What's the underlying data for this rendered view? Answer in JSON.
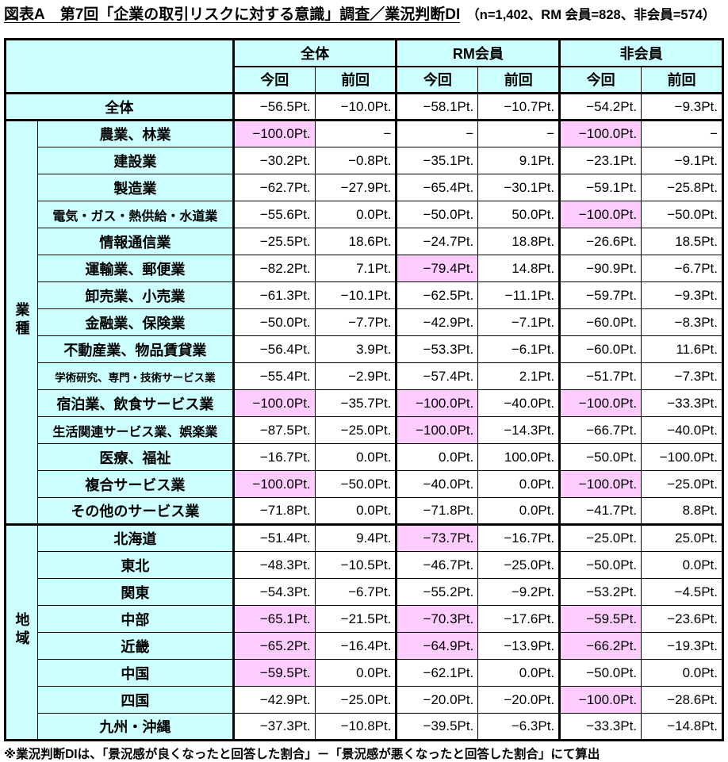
{
  "title": {
    "main": "図表А　第7回「企業の取引リスクに対する意識」調査／業況判断DI",
    "note": "（n=1,402、RM 会員=828、非会員=574）"
  },
  "colors": {
    "header_bg": "#CCFFFF",
    "highlight_bg": "#FFCCFF",
    "border": "#000000"
  },
  "table": {
    "col_groups": [
      "全体",
      "RM会員",
      "非会員"
    ],
    "sub_headers": [
      "今回",
      "前回"
    ],
    "overall_row": {
      "label": "全体",
      "values": [
        "−56.5Pt.",
        "−10.0Pt.",
        "−58.1Pt.",
        "−10.7Pt.",
        "−54.2Pt.",
        "−9.3Pt."
      ],
      "highlights": []
    },
    "sections": [
      {
        "id": "industry",
        "label": "業種",
        "rows": [
          {
            "label": "農業、林業",
            "values": [
              "−100.0Pt.",
              "−",
              "−",
              "−",
              "−100.0Pt.",
              "−"
            ],
            "highlights": [
              0,
              4
            ]
          },
          {
            "label": "建設業",
            "values": [
              "−30.2Pt.",
              "−0.8Pt.",
              "−35.1Pt.",
              "9.1Pt.",
              "−23.1Pt.",
              "−9.1Pt."
            ],
            "highlights": []
          },
          {
            "label": "製造業",
            "values": [
              "−62.7Pt.",
              "−27.9Pt.",
              "−65.4Pt.",
              "−30.1Pt.",
              "−59.1Pt.",
              "−25.8Pt."
            ],
            "highlights": []
          },
          {
            "label": "電気・ガス・熱供給・水道業",
            "values": [
              "−55.6Pt.",
              "0.0Pt.",
              "−50.0Pt.",
              "50.0Pt.",
              "−100.0Pt.",
              "−50.0Pt."
            ],
            "highlights": [
              4
            ]
          },
          {
            "label": "情報通信業",
            "values": [
              "−25.5Pt.",
              "18.6Pt.",
              "−24.7Pt.",
              "18.8Pt.",
              "−26.6Pt.",
              "18.5Pt."
            ],
            "highlights": []
          },
          {
            "label": "運輸業、郵便業",
            "values": [
              "−82.2Pt.",
              "7.1Pt.",
              "−79.4Pt.",
              "14.8Pt.",
              "−90.9Pt.",
              "−6.7Pt."
            ],
            "highlights": [
              2
            ]
          },
          {
            "label": "卸売業、小売業",
            "values": [
              "−61.3Pt.",
              "−10.1Pt.",
              "−62.5Pt.",
              "−11.1Pt.",
              "−59.7Pt.",
              "−9.3Pt."
            ],
            "highlights": []
          },
          {
            "label": "金融業、保険業",
            "values": [
              "−50.0Pt.",
              "−7.7Pt.",
              "−42.9Pt.",
              "−7.1Pt.",
              "−60.0Pt.",
              "−8.3Pt."
            ],
            "highlights": []
          },
          {
            "label": "不動産業、物品賃貸業",
            "values": [
              "−56.4Pt.",
              "3.9Pt.",
              "−53.3Pt.",
              "−6.1Pt.",
              "−60.0Pt.",
              "11.6Pt."
            ],
            "highlights": []
          },
          {
            "label": "学術研究、専門・技術サービス業",
            "values": [
              "−55.4Pt.",
              "−2.9Pt.",
              "−57.4Pt.",
              "2.1Pt.",
              "−51.7Pt.",
              "−7.3Pt."
            ],
            "highlights": []
          },
          {
            "label": "宿泊業、飲食サービス業",
            "values": [
              "−100.0Pt.",
              "−35.7Pt.",
              "−100.0Pt.",
              "−40.0Pt.",
              "−100.0Pt.",
              "−33.3Pt."
            ],
            "highlights": [
              0,
              2,
              4
            ]
          },
          {
            "label": "生活関連サービス業、娯楽業",
            "values": [
              "−87.5Pt.",
              "−25.0Pt.",
              "−100.0Pt.",
              "−14.3Pt.",
              "−66.7Pt.",
              "−40.0Pt."
            ],
            "highlights": [
              2
            ]
          },
          {
            "label": "医療、福祉",
            "values": [
              "−16.7Pt.",
              "0.0Pt.",
              "0.0Pt.",
              "100.0Pt.",
              "−50.0Pt.",
              "−100.0Pt."
            ],
            "highlights": []
          },
          {
            "label": "複合サービス業",
            "values": [
              "−100.0Pt.",
              "−50.0Pt.",
              "−40.0Pt.",
              "0.0Pt.",
              "−100.0Pt.",
              "−25.0Pt."
            ],
            "highlights": [
              0,
              4
            ]
          },
          {
            "label": "その他のサービス業",
            "values": [
              "−71.8Pt.",
              "0.0Pt.",
              "−71.8Pt.",
              "0.0Pt.",
              "−41.7Pt.",
              "8.8Pt."
            ],
            "highlights": []
          }
        ]
      },
      {
        "id": "region",
        "label": "地域",
        "rows": [
          {
            "label": "北海道",
            "values": [
              "−51.4Pt.",
              "9.4Pt.",
              "−73.7Pt.",
              "−16.7Pt.",
              "−25.0Pt.",
              "25.0Pt."
            ],
            "highlights": [
              2
            ]
          },
          {
            "label": "東北",
            "values": [
              "−48.3Pt.",
              "−10.5Pt.",
              "−46.7Pt.",
              "−25.0Pt.",
              "−50.0Pt.",
              "0.0Pt."
            ],
            "highlights": []
          },
          {
            "label": "関東",
            "values": [
              "−54.3Pt.",
              "−6.7Pt.",
              "−55.2Pt.",
              "−9.2Pt.",
              "−53.2Pt.",
              "−4.5Pt."
            ],
            "highlights": []
          },
          {
            "label": "中部",
            "values": [
              "−65.1Pt.",
              "−21.5Pt.",
              "−70.3Pt.",
              "−17.6Pt.",
              "−59.5Pt.",
              "−23.6Pt."
            ],
            "highlights": [
              0,
              2,
              4
            ]
          },
          {
            "label": "近畿",
            "values": [
              "−65.2Pt.",
              "−16.4Pt.",
              "−64.9Pt.",
              "−13.9Pt.",
              "−66.2Pt.",
              "−19.3Pt."
            ],
            "highlights": [
              0,
              2,
              4
            ]
          },
          {
            "label": "中国",
            "values": [
              "−59.5Pt.",
              "0.0Pt.",
              "−62.1Pt.",
              "0.0Pt.",
              "−50.0Pt.",
              "0.0Pt."
            ],
            "highlights": [
              0
            ]
          },
          {
            "label": "四国",
            "values": [
              "−42.9Pt.",
              "−25.0Pt.",
              "−20.0Pt.",
              "−20.0Pt.",
              "−100.0Pt.",
              "−28.6Pt."
            ],
            "highlights": [
              4
            ]
          },
          {
            "label": "九州・沖縄",
            "values": [
              "−37.3Pt.",
              "−10.8Pt.",
              "−39.5Pt.",
              "−6.3Pt.",
              "−33.3Pt.",
              "−14.8Pt."
            ],
            "highlights": []
          }
        ]
      }
    ]
  },
  "footnote": "※業況判断DIは、「景況感が良くなったと回答した割合」－「景況感が悪くなったと回答した割合」にて算出"
}
